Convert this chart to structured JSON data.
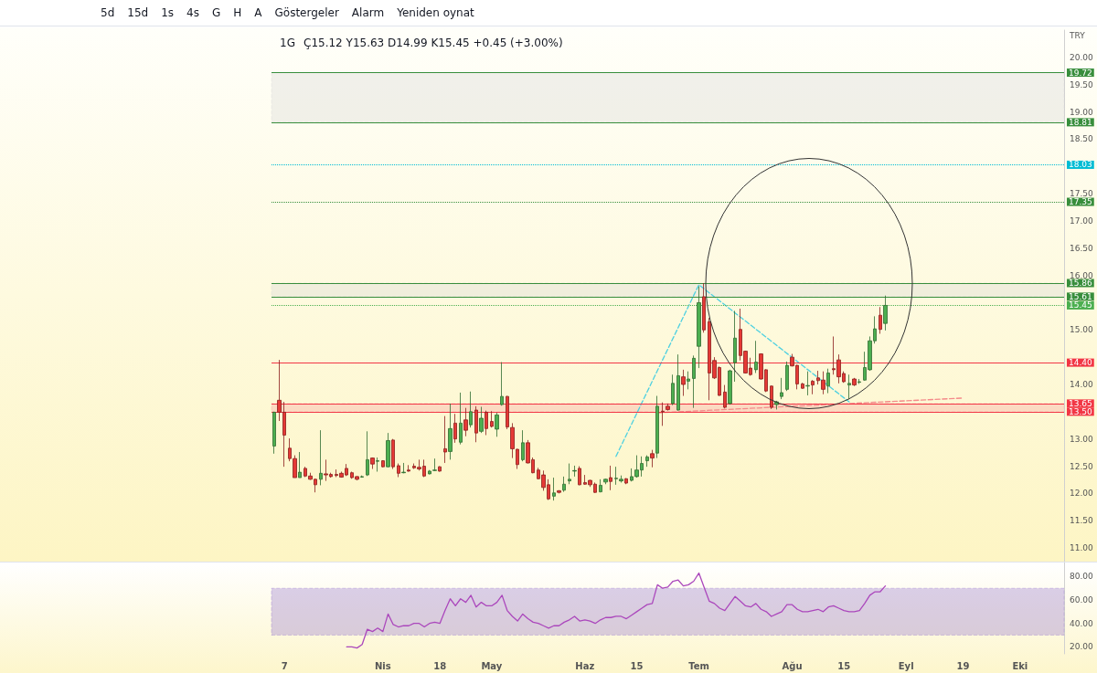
{
  "chart_data": [
    {
      "type": "candlestick",
      "title": "1G",
      "subtitle": "Ç15.12 Y15.63 D14.99 K15.45 +0.45 (+3.00%)",
      "ylabel": "TRY",
      "annotations": [
        "5d",
        "15d",
        "1s",
        "4s",
        "G",
        "H",
        "A",
        "Göstergeler",
        "Alarm",
        "Yeniden oynat"
      ],
      "categories": [
        null,
        null,
        null,
        null,
        null,
        null,
        null,
        null,
        null,
        null,
        null,
        null,
        null,
        null,
        null,
        null,
        null,
        null,
        null,
        null,
        null,
        null,
        null,
        null,
        null,
        null,
        null,
        null,
        null,
        null,
        null,
        null,
        null,
        null,
        null,
        null,
        null,
        null,
        null,
        null,
        null,
        null,
        null,
        null,
        null,
        null,
        null,
        null,
        null,
        null,
        null,
        null,
        null,
        null,
        null,
        null,
        null,
        null,
        null,
        null,
        null,
        null,
        null,
        null,
        null,
        null,
        null,
        null,
        null,
        null,
        null,
        null,
        null,
        null,
        null,
        null,
        null,
        null,
        null,
        null,
        null,
        null,
        null,
        null,
        null,
        null,
        null,
        null,
        null,
        null,
        null,
        null,
        null,
        null,
        null,
        null,
        null,
        null,
        null,
        null,
        null,
        null,
        null,
        null,
        null,
        null,
        null,
        null,
        null,
        null,
        null,
        null,
        null,
        null,
        null,
        null,
        null,
        null,
        null,
        null,
        null,
        null,
        null,
        null,
        null,
        null,
        null,
        null,
        null,
        null,
        null,
        null,
        null,
        null,
        null,
        null,
        null,
        null,
        null,
        null,
        null,
        null,
        null,
        null,
        null,
        null,
        null,
        null,
        null,
        null,
        null,
        null,
        null
      ],
      "ohlc": [
        [
          12.87,
          13.5,
          12.73,
          13.49
        ],
        [
          13.71,
          14.45,
          13.33,
          13.49
        ],
        [
          13.49,
          13.68,
          12.49,
          13.07
        ],
        [
          12.83,
          13.01,
          12.59,
          12.64
        ],
        [
          12.64,
          12.7,
          12.29,
          12.29
        ],
        [
          12.29,
          12.76,
          12.29,
          12.39
        ],
        [
          12.46,
          12.49,
          12.3,
          12.32
        ],
        [
          12.32,
          12.38,
          12.25,
          12.26
        ],
        [
          12.26,
          12.27,
          12.02,
          12.16
        ],
        [
          12.26,
          13.16,
          12.15,
          12.37
        ],
        [
          12.36,
          12.62,
          12.23,
          12.34
        ],
        [
          12.35,
          12.38,
          12.29,
          12.31
        ],
        [
          12.35,
          12.44,
          12.3,
          12.33
        ],
        [
          12.37,
          12.4,
          12.29,
          12.3
        ],
        [
          12.46,
          12.54,
          12.32,
          12.34
        ],
        [
          12.38,
          12.4,
          12.27,
          12.29
        ],
        [
          12.31,
          12.32,
          12.24,
          12.26
        ],
        [
          12.3,
          12.33,
          12.29,
          12.31
        ],
        [
          12.34,
          13.14,
          12.32,
          12.62
        ],
        [
          12.65,
          12.66,
          12.45,
          12.54
        ],
        [
          12.59,
          12.66,
          12.4,
          12.6
        ],
        [
          12.6,
          12.61,
          12.48,
          12.49
        ],
        [
          12.49,
          13.11,
          12.48,
          12.97
        ],
        [
          12.98,
          13.0,
          12.45,
          12.49
        ],
        [
          12.51,
          12.55,
          12.3,
          12.37
        ],
        [
          12.38,
          12.56,
          12.37,
          12.39
        ],
        [
          12.43,
          12.52,
          12.4,
          12.41
        ],
        [
          12.5,
          12.55,
          12.45,
          12.47
        ],
        [
          12.48,
          12.62,
          12.42,
          12.45
        ],
        [
          12.5,
          12.62,
          12.3,
          12.32
        ],
        [
          12.36,
          12.43,
          12.35,
          12.41
        ],
        [
          12.42,
          12.64,
          12.41,
          12.43
        ],
        [
          12.49,
          12.5,
          12.4,
          12.41
        ],
        [
          12.82,
          13.42,
          12.56,
          12.76
        ],
        [
          12.77,
          13.65,
          12.62,
          13.19
        ],
        [
          13.29,
          13.46,
          12.93,
          13.0
        ],
        [
          12.94,
          13.85,
          12.9,
          13.29
        ],
        [
          13.35,
          13.57,
          13.05,
          13.16
        ],
        [
          13.26,
          13.87,
          13.21,
          13.5
        ],
        [
          13.53,
          13.6,
          12.94,
          13.11
        ],
        [
          13.14,
          13.59,
          13.11,
          13.38
        ],
        [
          13.49,
          13.52,
          13.07,
          13.19
        ],
        [
          13.32,
          13.51,
          13.21,
          13.23
        ],
        [
          13.18,
          13.48,
          13.04,
          13.44
        ],
        [
          13.63,
          14.41,
          13.61,
          13.78
        ],
        [
          13.78,
          13.79,
          13.18,
          13.22
        ],
        [
          13.21,
          13.29,
          12.65,
          12.82
        ],
        [
          12.81,
          12.82,
          12.45,
          12.53
        ],
        [
          12.62,
          13.16,
          12.59,
          12.93
        ],
        [
          12.93,
          12.98,
          12.55,
          12.56
        ],
        [
          12.62,
          12.66,
          12.37,
          12.38
        ],
        [
          12.43,
          12.47,
          12.26,
          12.27
        ],
        [
          12.34,
          12.42,
          12.05,
          12.11
        ],
        [
          12.16,
          12.26,
          11.88,
          11.9
        ],
        [
          11.95,
          12.29,
          11.87,
          12.01
        ],
        [
          12.05,
          12.06,
          12.0,
          12.02
        ],
        [
          12.06,
          12.31,
          12.03,
          12.17
        ],
        [
          12.23,
          12.55,
          12.17,
          12.26
        ],
        [
          12.41,
          12.51,
          12.31,
          12.42
        ],
        [
          12.46,
          12.5,
          12.15,
          12.16
        ],
        [
          12.2,
          12.34,
          12.16,
          12.17
        ],
        [
          12.24,
          12.25,
          12.12,
          12.16
        ],
        [
          12.17,
          12.2,
          12.01,
          12.02
        ],
        [
          12.03,
          12.26,
          12.02,
          12.15
        ],
        [
          12.21,
          12.27,
          12.17,
          12.26
        ],
        [
          12.29,
          12.51,
          12.06,
          12.22
        ],
        [
          12.27,
          12.49,
          12.16,
          12.28
        ],
        [
          12.23,
          12.33,
          12.2,
          12.26
        ],
        [
          12.27,
          12.28,
          12.17,
          12.19
        ],
        [
          12.24,
          12.46,
          12.22,
          12.31
        ],
        [
          12.31,
          12.7,
          12.29,
          12.43
        ],
        [
          12.43,
          12.68,
          12.31,
          12.55
        ],
        [
          12.6,
          12.7,
          12.49,
          12.67
        ],
        [
          12.73,
          12.8,
          12.48,
          12.65
        ],
        [
          12.74,
          13.79,
          12.65,
          13.6
        ],
        [
          13.51,
          13.67,
          13.24,
          13.5
        ],
        [
          13.6,
          13.65,
          13.52,
          13.54
        ],
        [
          13.65,
          14.18,
          13.62,
          14.02
        ],
        [
          13.53,
          14.55,
          13.52,
          14.16
        ],
        [
          14.14,
          14.27,
          13.79,
          14.0
        ],
        [
          14.06,
          14.24,
          13.91,
          14.1
        ],
        [
          14.11,
          14.53,
          13.57,
          14.48
        ],
        [
          14.7,
          15.8,
          14.3,
          15.5
        ],
        [
          15.61,
          15.86,
          14.95,
          15.0
        ],
        [
          15.15,
          15.22,
          13.71,
          14.21
        ],
        [
          14.44,
          14.5,
          14.1,
          14.12
        ],
        [
          14.31,
          14.33,
          13.79,
          13.8
        ],
        [
          13.86,
          13.99,
          13.56,
          13.58
        ],
        [
          13.65,
          14.27,
          13.63,
          14.25
        ],
        [
          14.4,
          15.35,
          14.05,
          14.85
        ],
        [
          15.01,
          15.39,
          14.44,
          14.53
        ],
        [
          14.61,
          14.62,
          14.2,
          14.21
        ],
        [
          14.3,
          14.49,
          14.16,
          14.18
        ],
        [
          14.27,
          14.8,
          14.21,
          14.41
        ],
        [
          14.56,
          14.57,
          14.09,
          14.1
        ],
        [
          14.27,
          14.28,
          13.86,
          13.88
        ],
        [
          13.97,
          13.98,
          13.55,
          13.58
        ],
        [
          13.63,
          13.7,
          13.54,
          13.68
        ],
        [
          13.78,
          14.12,
          13.73,
          13.85
        ],
        [
          13.91,
          14.42,
          13.88,
          14.35
        ],
        [
          14.5,
          14.56,
          14.33,
          14.34
        ],
        [
          14.35,
          14.36,
          13.91,
          14.01
        ],
        [
          14.01,
          14.03,
          13.92,
          13.93
        ],
        [
          13.97,
          14.24,
          13.8,
          13.98
        ],
        [
          14.06,
          14.08,
          13.82,
          13.99
        ],
        [
          14.12,
          14.25,
          14.0,
          14.07
        ],
        [
          14.08,
          14.24,
          13.82,
          13.91
        ],
        [
          13.97,
          14.29,
          13.84,
          14.21
        ],
        [
          14.29,
          14.88,
          14.18,
          14.27
        ],
        [
          14.45,
          14.55,
          14.02,
          14.14
        ],
        [
          14.2,
          14.24,
          14.03,
          14.05
        ],
        [
          13.99,
          14.18,
          13.73,
          14.02
        ],
        [
          14.1,
          14.12,
          13.97,
          13.99
        ],
        [
          14.04,
          14.1,
          14.01,
          14.05
        ],
        [
          14.08,
          14.6,
          14.07,
          14.31
        ],
        [
          14.27,
          14.88,
          14.25,
          14.8
        ],
        [
          14.8,
          15.25,
          14.75,
          15.02
        ],
        [
          15.27,
          15.42,
          14.93,
          15.01
        ],
        [
          15.12,
          15.63,
          14.99,
          15.45
        ],
        null,
        null,
        null,
        null,
        null,
        null,
        null,
        null,
        null,
        null,
        null,
        null,
        null,
        null,
        null,
        null,
        null,
        null,
        null,
        null,
        null,
        null,
        null,
        null,
        null,
        null,
        null,
        null,
        null,
        null,
        null,
        null,
        null,
        null
      ],
      "series": [
        {
          "type": "line",
          "color": "#4dd0e1",
          "line_style": "dashed",
          "values": [
            null,
            null,
            null,
            null,
            null,
            null,
            null,
            null,
            null,
            null,
            null,
            null,
            null,
            null,
            null,
            null,
            null,
            null,
            null,
            null,
            null,
            null,
            null,
            null,
            null,
            null,
            null,
            null,
            null,
            null,
            null,
            null,
            null,
            null,
            null,
            null,
            null,
            null,
            null,
            null,
            null,
            null,
            null,
            null,
            null,
            null,
            null,
            null,
            null,
            null,
            null,
            null,
            null,
            null,
            null,
            null,
            null,
            null,
            null,
            null,
            null,
            null,
            null,
            null,
            null,
            null,
            12.68,
            null,
            null,
            null,
            null,
            null,
            null,
            null,
            null,
            null,
            null,
            null,
            null,
            null,
            null,
            null,
            15.83,
            null,
            null,
            null,
            null,
            null,
            null,
            null,
            null,
            null,
            null,
            null,
            null,
            null,
            null,
            null,
            null,
            null,
            null,
            null,
            null,
            null,
            null,
            null,
            null,
            null,
            null,
            null,
            null,
            13.68,
            null,
            null,
            null,
            null,
            null,
            null,
            null,
            null,
            null,
            null,
            null,
            null,
            null,
            null,
            null,
            null,
            null,
            null,
            null,
            null,
            null,
            null,
            null,
            null,
            null,
            null,
            null,
            null,
            null,
            null,
            null,
            null,
            null,
            null,
            null,
            null,
            null,
            null,
            null,
            null,
            null
          ]
        },
        {
          "type": "line",
          "color": "#f48a8a",
          "line_style": "dashed",
          "values": [
            null,
            null,
            null,
            null,
            null,
            null,
            null,
            null,
            null,
            null,
            null,
            null,
            null,
            null,
            null,
            null,
            null,
            null,
            null,
            null,
            null,
            null,
            null,
            null,
            null,
            null,
            null,
            null,
            null,
            null,
            null,
            null,
            null,
            null,
            null,
            null,
            null,
            null,
            null,
            null,
            null,
            null,
            null,
            null,
            null,
            null,
            null,
            null,
            null,
            null,
            null,
            null,
            null,
            null,
            null,
            null,
            null,
            null,
            null,
            null,
            null,
            null,
            null,
            null,
            null,
            null,
            null,
            null,
            null,
            null,
            null,
            null,
            null,
            null,
            13.48,
            null,
            null,
            null,
            null,
            null,
            null,
            null,
            null,
            null,
            null,
            null,
            null,
            null,
            null,
            null,
            null,
            null,
            null,
            null,
            null,
            null,
            null,
            null,
            null,
            null,
            null,
            null,
            null,
            null,
            null,
            null,
            null,
            null,
            null,
            null,
            null,
            null,
            null,
            null,
            null,
            null,
            null,
            null,
            null,
            null,
            null,
            null,
            null,
            null,
            null,
            null,
            null,
            null,
            null,
            null,
            null,
            null,
            null,
            13.75,
            null,
            null,
            null,
            null,
            null,
            null,
            null,
            null,
            null,
            null,
            null,
            null,
            null,
            null,
            null,
            null,
            null,
            null,
            null
          ]
        }
      ],
      "ylim": [
        10.75,
        20.5
      ],
      "yticks": [
        {
          "value": 11,
          "label": "11.00"
        },
        {
          "value": 11.5,
          "label": "11.50"
        },
        {
          "value": 12,
          "label": "12.00"
        },
        {
          "value": 12.5,
          "label": "12.50"
        },
        {
          "value": 13,
          "label": "13.00"
        },
        {
          "value": 14,
          "label": "14.00"
        },
        {
          "value": 15,
          "label": "15.00"
        },
        {
          "value": 16,
          "label": "16.00"
        },
        {
          "value": 16.5,
          "label": "16.50"
        },
        {
          "value": 17,
          "label": "17.00"
        },
        {
          "value": 17.5,
          "label": "17.50"
        },
        {
          "value": 18.5,
          "label": "18.50"
        },
        {
          "value": 19,
          "label": "19.00"
        },
        {
          "value": 19.5,
          "label": "19.50"
        },
        {
          "value": 20,
          "label": "20.00"
        }
      ],
      "ref_lines": [
        {
          "axis": "y",
          "value": 19.72,
          "label": "19.72",
          "color": "#388e3c",
          "line_style": "solid"
        },
        {
          "axis": "y",
          "value": 18.81,
          "label": "18.81",
          "color": "#388e3c",
          "line_style": "solid"
        },
        {
          "axis": "y",
          "value": 18.03,
          "label": "18.03",
          "color": "#00bcd4",
          "line_style": "dotted"
        },
        {
          "axis": "y",
          "value": 17.35,
          "label": "17.35",
          "color": "#388e3c",
          "line_style": "dotted"
        },
        {
          "axis": "y",
          "value": 15.86,
          "label": "15.86",
          "color": "#388e3c",
          "line_style": "solid"
        },
        {
          "axis": "y",
          "value": 15.61,
          "label": "15.61",
          "color": "#388e3c",
          "line_style": "solid"
        },
        {
          "axis": "y",
          "value": 15.45,
          "label": "15.45",
          "color": "#4caf50",
          "line_style": "dotted"
        },
        {
          "axis": "y",
          "value": 14.4,
          "label": "14.40",
          "color": "#f23645",
          "line_style": "solid"
        },
        {
          "axis": "y",
          "value": 13.65,
          "label": "13.65",
          "color": "#f23645",
          "line_style": "solid"
        },
        {
          "axis": "y",
          "value": 13.5,
          "label": "13.50",
          "color": "#f23645",
          "line_style": "solid"
        }
      ],
      "bands": [
        {
          "axis": "y",
          "from": 18.81,
          "to": 19.72,
          "color": "#d8d8d8"
        },
        {
          "axis": "y",
          "from": 15.61,
          "to": 15.86,
          "color": "#d8d8d8"
        },
        {
          "axis": "y",
          "from": 13.5,
          "to": 13.65,
          "color": "#f7a3a0"
        }
      ],
      "grid": false,
      "tick_labels": "y"
    },
    {
      "type": "line",
      "categories": [
        null,
        null,
        "7",
        null,
        null,
        null,
        null,
        null,
        null,
        null,
        null,
        null,
        null,
        null,
        null,
        null,
        null,
        null,
        null,
        null,
        null,
        "Nis",
        null,
        null,
        null,
        null,
        null,
        null,
        null,
        null,
        null,
        null,
        "18",
        null,
        null,
        null,
        null,
        null,
        null,
        null,
        null,
        null,
        "May",
        null,
        null,
        null,
        null,
        null,
        null,
        null,
        null,
        null,
        null,
        null,
        null,
        null,
        null,
        null,
        null,
        null,
        "Haz",
        null,
        null,
        null,
        null,
        null,
        null,
        null,
        null,
        null,
        "15",
        null,
        null,
        null,
        null,
        null,
        null,
        null,
        null,
        null,
        null,
        null,
        "Tem",
        null,
        null,
        null,
        null,
        null,
        null,
        null,
        null,
        null,
        null,
        null,
        null,
        null,
        null,
        null,
        null,
        null,
        "Ağu",
        null,
        null,
        null,
        null,
        null,
        null,
        null,
        null,
        null,
        "15",
        null,
        null,
        null,
        null,
        null,
        null,
        null,
        null,
        null,
        null,
        null,
        "Eyl",
        null,
        null,
        null,
        null,
        null,
        null,
        null,
        null,
        null,
        null,
        "19",
        null,
        null,
        null,
        null,
        null,
        null,
        null,
        null,
        null,
        null,
        "Eki",
        null,
        null,
        null,
        null,
        null,
        null,
        null,
        null
      ],
      "series": [
        {
          "color": "#ab47bc",
          "values": [
            null,
            null,
            null,
            null,
            null,
            null,
            null,
            null,
            null,
            null,
            null,
            null,
            null,
            null,
            20,
            20,
            19,
            22,
            35,
            33,
            36,
            33,
            48,
            39,
            37,
            38,
            38,
            40,
            40,
            37,
            40,
            41,
            40,
            51,
            61,
            55,
            61,
            58,
            64,
            54,
            58,
            55,
            55,
            58,
            64,
            51,
            46,
            42,
            48,
            44,
            41,
            40,
            38,
            36,
            38,
            38,
            41,
            43,
            46,
            42,
            43,
            42,
            40,
            43,
            45,
            45,
            46,
            46,
            44,
            47,
            50,
            53,
            56,
            57,
            73,
            70,
            71,
            76,
            77,
            72,
            73,
            76,
            83,
            71,
            59,
            57,
            53,
            51,
            57,
            63,
            59,
            55,
            54,
            57,
            52,
            50,
            46,
            48,
            50,
            56,
            56,
            52,
            50,
            50,
            51,
            52,
            50,
            54,
            55,
            53,
            51,
            50,
            50,
            51,
            57,
            64,
            67,
            67,
            72,
            null,
            null,
            null,
            null,
            null,
            null,
            null,
            null,
            null,
            null,
            null,
            null,
            null,
            null,
            null,
            null,
            null,
            null,
            null,
            null,
            null,
            null,
            null,
            null,
            null,
            null,
            null,
            null,
            null,
            null,
            null,
            null,
            null,
            null
          ]
        }
      ],
      "ylim": [
        14,
        92
      ],
      "yticks": [
        {
          "value": 20,
          "label": "20.00"
        },
        {
          "value": 40,
          "label": "40.00"
        },
        {
          "value": 60,
          "label": "60.00"
        },
        {
          "value": 80,
          "label": "80.00"
        }
      ],
      "bands": [
        {
          "axis": "y",
          "from": 30,
          "to": 70,
          "color": "#9575cd"
        }
      ],
      "grid": false
    }
  ]
}
